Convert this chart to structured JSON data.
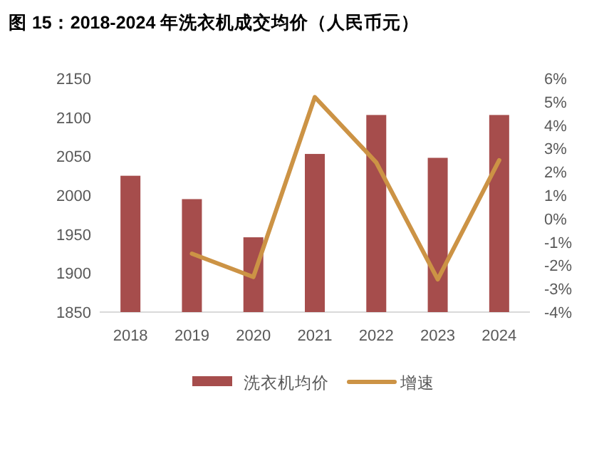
{
  "chart_data": {
    "type": "bar",
    "title": "图 15：2018-2024 年洗衣机成交均价（人民币元）",
    "categories": [
      "2018",
      "2019",
      "2020",
      "2021",
      "2022",
      "2023",
      "2024"
    ],
    "series": [
      {
        "name": "洗衣机均价",
        "color": "#a64d4c",
        "values": [
          2025,
          1995,
          1946,
          2053,
          2103,
          2048,
          2103
        ]
      },
      {
        "name": "增速",
        "type": "line",
        "axis": "y2",
        "color": "#cc9345",
        "values": [
          null,
          -1.5,
          -2.5,
          5.2,
          2.4,
          -2.6,
          2.5
        ]
      }
    ],
    "ylim": [
      1850,
      2150
    ],
    "yticks": [
      1850,
      1900,
      1950,
      2000,
      2050,
      2100,
      2150
    ],
    "y2lim": [
      -4,
      6
    ],
    "y2ticks": [
      {
        "value": -4,
        "label": "-4%"
      },
      {
        "value": -3,
        "label": "-3%"
      },
      {
        "value": -2,
        "label": "-2%"
      },
      {
        "value": -1,
        "label": "-1%"
      },
      {
        "value": 0,
        "label": "0%"
      },
      {
        "value": 1,
        "label": "1%"
      },
      {
        "value": 2,
        "label": "2%"
      },
      {
        "value": 3,
        "label": "3%"
      },
      {
        "value": 4,
        "label": "4%"
      },
      {
        "value": 5,
        "label": "5%"
      },
      {
        "value": 6,
        "label": "6%"
      }
    ],
    "grid": false,
    "legend": "bottom"
  }
}
